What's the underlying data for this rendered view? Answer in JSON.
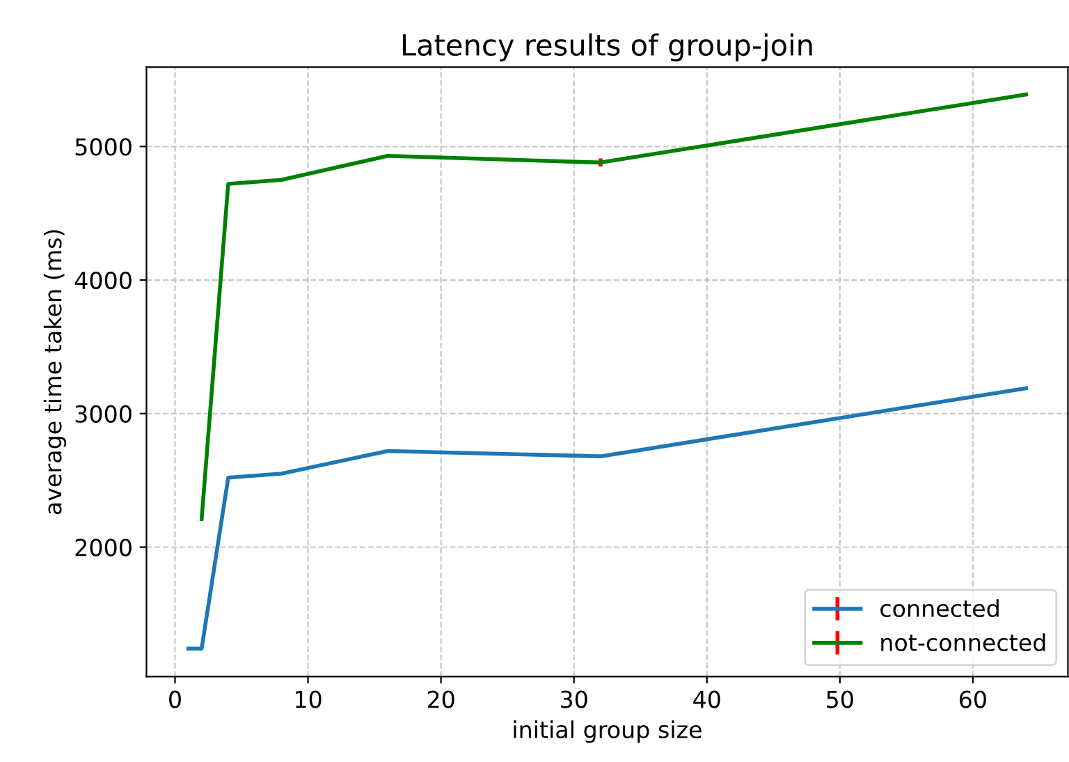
{
  "chart_data": {
    "type": "line",
    "title": "Latency results of group-join",
    "xlabel": "initial group size",
    "ylabel": "average time taken (ms)",
    "xlim": [
      -2.15,
      67.15
    ],
    "xticks": [
      0,
      10,
      20,
      30,
      40,
      50,
      60
    ],
    "ylim": [
      1030,
      5595
    ],
    "yticks": [
      2000,
      3000,
      4000,
      5000
    ],
    "grid": true,
    "legend": "bottom right",
    "series": [
      {
        "name": "connected",
        "color": "#1f77b4",
        "x": [
          1,
          2,
          4,
          8,
          16,
          32,
          64
        ],
        "values": [
          1240,
          1240,
          2520,
          2550,
          2720,
          2680,
          3190
        ],
        "errors": [
          null,
          null,
          null,
          null,
          null,
          null,
          null
        ]
      },
      {
        "name": "not-connected",
        "color": "#008000",
        "x": [
          2,
          4,
          8,
          16,
          32,
          64
        ],
        "values": [
          2210,
          4720,
          4750,
          4930,
          4880,
          5390
        ],
        "errors": [
          null,
          null,
          null,
          null,
          30,
          null
        ]
      }
    ]
  }
}
